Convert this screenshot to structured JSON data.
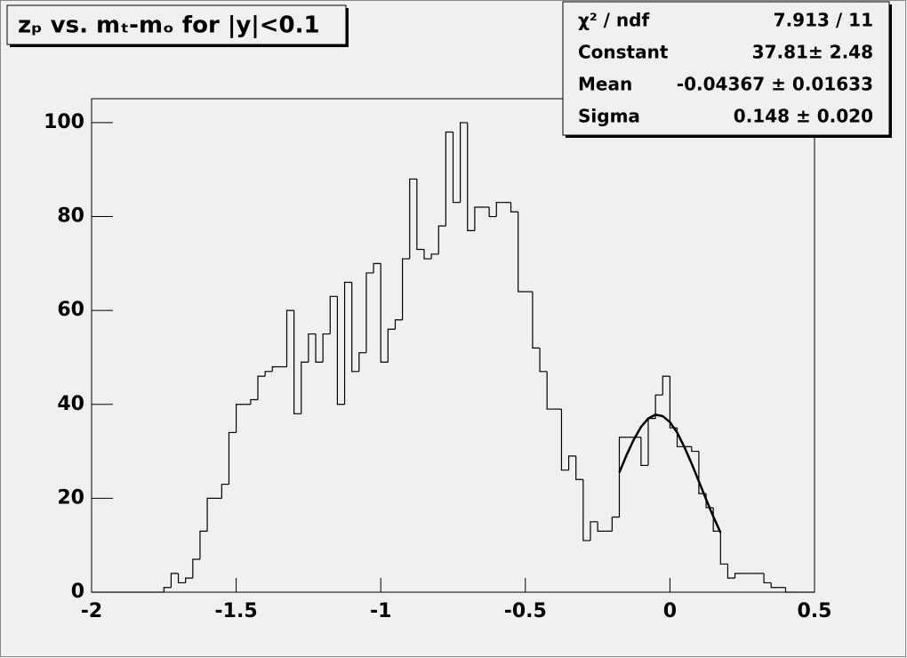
{
  "chart_data": {
    "type": "histogram",
    "title": "zₚ vs. mₜ-mₒ for |y|<0.1",
    "bins": [
      -2,
      -1.975,
      -1.95,
      -1.925,
      -1.9,
      -1.875,
      -1.85,
      -1.825,
      -1.8,
      -1.775,
      -1.75,
      -1.725,
      -1.7,
      -1.675,
      -1.65,
      -1.625,
      -1.6,
      -1.575,
      -1.55,
      -1.525,
      -1.5,
      -1.475,
      -1.45,
      -1.425,
      -1.4,
      -1.375,
      -1.35,
      -1.325,
      -1.3,
      -1.275,
      -1.25,
      -1.225,
      -1.2,
      -1.175,
      -1.15,
      -1.125,
      -1.1,
      -1.075,
      -1.05,
      -1.025,
      -1,
      -0.975,
      -0.95,
      -0.925,
      -0.9,
      -0.875,
      -0.85,
      -0.825,
      -0.8,
      -0.775,
      -0.75,
      -0.725,
      -0.7,
      -0.675,
      -0.65,
      -0.625,
      -0.6,
      -0.575,
      -0.55,
      -0.525,
      -0.5,
      -0.475,
      -0.45,
      -0.425,
      -0.4,
      -0.375,
      -0.35,
      -0.325,
      -0.3,
      -0.275,
      -0.25,
      -0.225,
      -0.2,
      -0.175,
      -0.15,
      -0.125,
      -0.1,
      -0.075,
      -0.05,
      -0.025,
      0,
      0.025,
      0.05,
      0.075,
      0.1,
      0.125,
      0.15,
      0.175,
      0.2,
      0.225,
      0.25,
      0.275,
      0.3,
      0.325,
      0.35,
      0.375,
      0.4,
      0.425,
      0.45,
      0.475,
      0.5
    ],
    "counts": [
      0,
      0,
      0,
      0,
      0,
      0,
      0,
      0,
      0,
      0,
      1,
      4,
      2,
      3,
      7,
      13,
      20,
      20,
      23,
      34,
      40,
      40,
      41,
      46,
      47,
      48,
      48,
      60,
      38,
      49,
      55,
      49,
      55,
      63,
      40,
      66,
      47,
      51,
      68,
      70,
      49,
      56,
      58,
      71,
      88,
      73,
      71,
      72,
      78,
      98,
      83,
      100,
      77,
      82,
      82,
      80,
      83,
      83,
      81,
      64,
      64,
      52,
      47,
      39,
      39,
      26,
      29,
      24,
      11,
      15,
      13,
      13,
      16,
      33,
      33,
      33,
      27,
      37,
      42,
      46,
      35,
      31,
      31,
      30,
      21,
      18,
      13,
      6,
      3,
      4,
      4,
      4,
      4,
      2,
      1,
      1,
      0,
      0,
      0,
      0
    ],
    "color": "#000000",
    "fit": {
      "x": [
        -0.175,
        -0.15,
        -0.125,
        -0.1,
        -0.075,
        -0.05,
        -0.025,
        0,
        0.025,
        0.05,
        0.075,
        0.1,
        0.125,
        0.15,
        0.175
      ],
      "values": [
        25.5,
        29.2,
        32.5,
        35.2,
        37.0,
        37.8,
        37.5,
        36.2,
        34.0,
        30.9,
        27.4,
        23.6,
        19.8,
        16.1,
        12.7
      ],
      "color": "#000000"
    },
    "xlim": [
      -2,
      0.5
    ],
    "xticks": [
      -2,
      -1.5,
      -1,
      -0.5,
      0,
      0.5
    ],
    "ylim": [
      0,
      105.1
    ],
    "yticks": [
      0,
      20,
      40,
      60,
      80,
      100
    ],
    "stats": [
      [
        "χ² / ndf",
        "7.913 / 11"
      ],
      [
        "Constant",
        "37.81± 2.48"
      ],
      [
        "Mean",
        "-0.04367 ± 0.01633"
      ],
      [
        "Sigma",
        "0.148 ± 0.020"
      ]
    ]
  }
}
